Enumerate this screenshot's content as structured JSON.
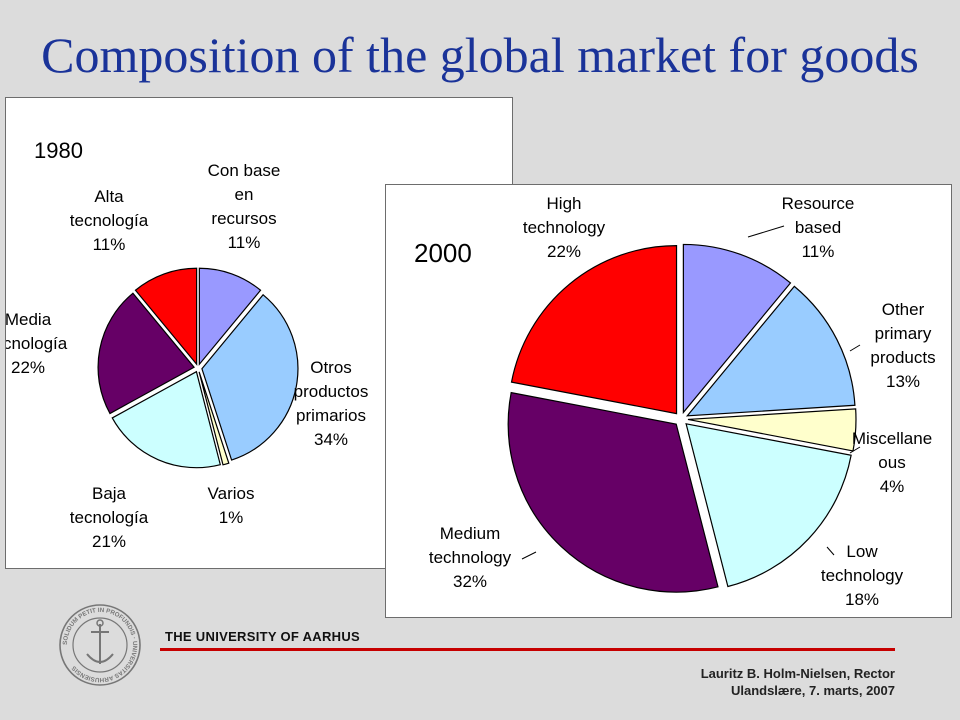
{
  "slide": {
    "title": "Composition of the global market for goods"
  },
  "chart_data": [
    {
      "type": "pie",
      "title": "1980",
      "slices": [
        {
          "label": [
            "Con base",
            "en",
            "recursos"
          ],
          "pct": "11%",
          "value": 11,
          "color": "#9999ff"
        },
        {
          "label": [
            "Otros",
            "productos",
            "primarios"
          ],
          "pct": "34%",
          "value": 34,
          "color": "#99ccff"
        },
        {
          "label": [
            "Varios"
          ],
          "pct": "1%",
          "value": 1,
          "color": "#ffffcc"
        },
        {
          "label": [
            "Baja",
            "tecnología"
          ],
          "pct": "21%",
          "value": 21,
          "color": "#ccffff"
        },
        {
          "label": [
            "Media",
            "tecnología"
          ],
          "pct": "22%",
          "value": 22,
          "color": "#660066"
        },
        {
          "label": [
            "Alta",
            "tecnología"
          ],
          "pct": "11%",
          "value": 11,
          "color": "#ff0000"
        }
      ]
    },
    {
      "type": "pie",
      "title": "2000",
      "slices": [
        {
          "label": [
            "Resource",
            "based"
          ],
          "pct": "11%",
          "value": 11,
          "color": "#9999ff"
        },
        {
          "label": [
            "Other",
            "primary",
            "products"
          ],
          "pct": "13%",
          "value": 13,
          "color": "#99ccff"
        },
        {
          "label": [
            "Miscellane",
            "ous"
          ],
          "pct": "4%",
          "value": 4,
          "color": "#ffffcc"
        },
        {
          "label": [
            "Low",
            "technology"
          ],
          "pct": "18%",
          "value": 18,
          "color": "#ccffff"
        },
        {
          "label": [
            "Medium",
            "technology"
          ],
          "pct": "32%",
          "value": 32,
          "color": "#660066"
        },
        {
          "label": [
            "High",
            "technology"
          ],
          "pct": "22%",
          "value": 22,
          "color": "#ff0000"
        }
      ]
    }
  ],
  "footer": {
    "university": "THE UNIVERSITY OF AARHUS",
    "author": "Lauritz B. Holm-Nielsen, Rector",
    "event": "Ulandslære, 7.  marts, 2007",
    "seal_text": "SOLIDUM PETIT IN PROFUNDIS · UNIVERSITAS ARHUSIENSIS"
  }
}
